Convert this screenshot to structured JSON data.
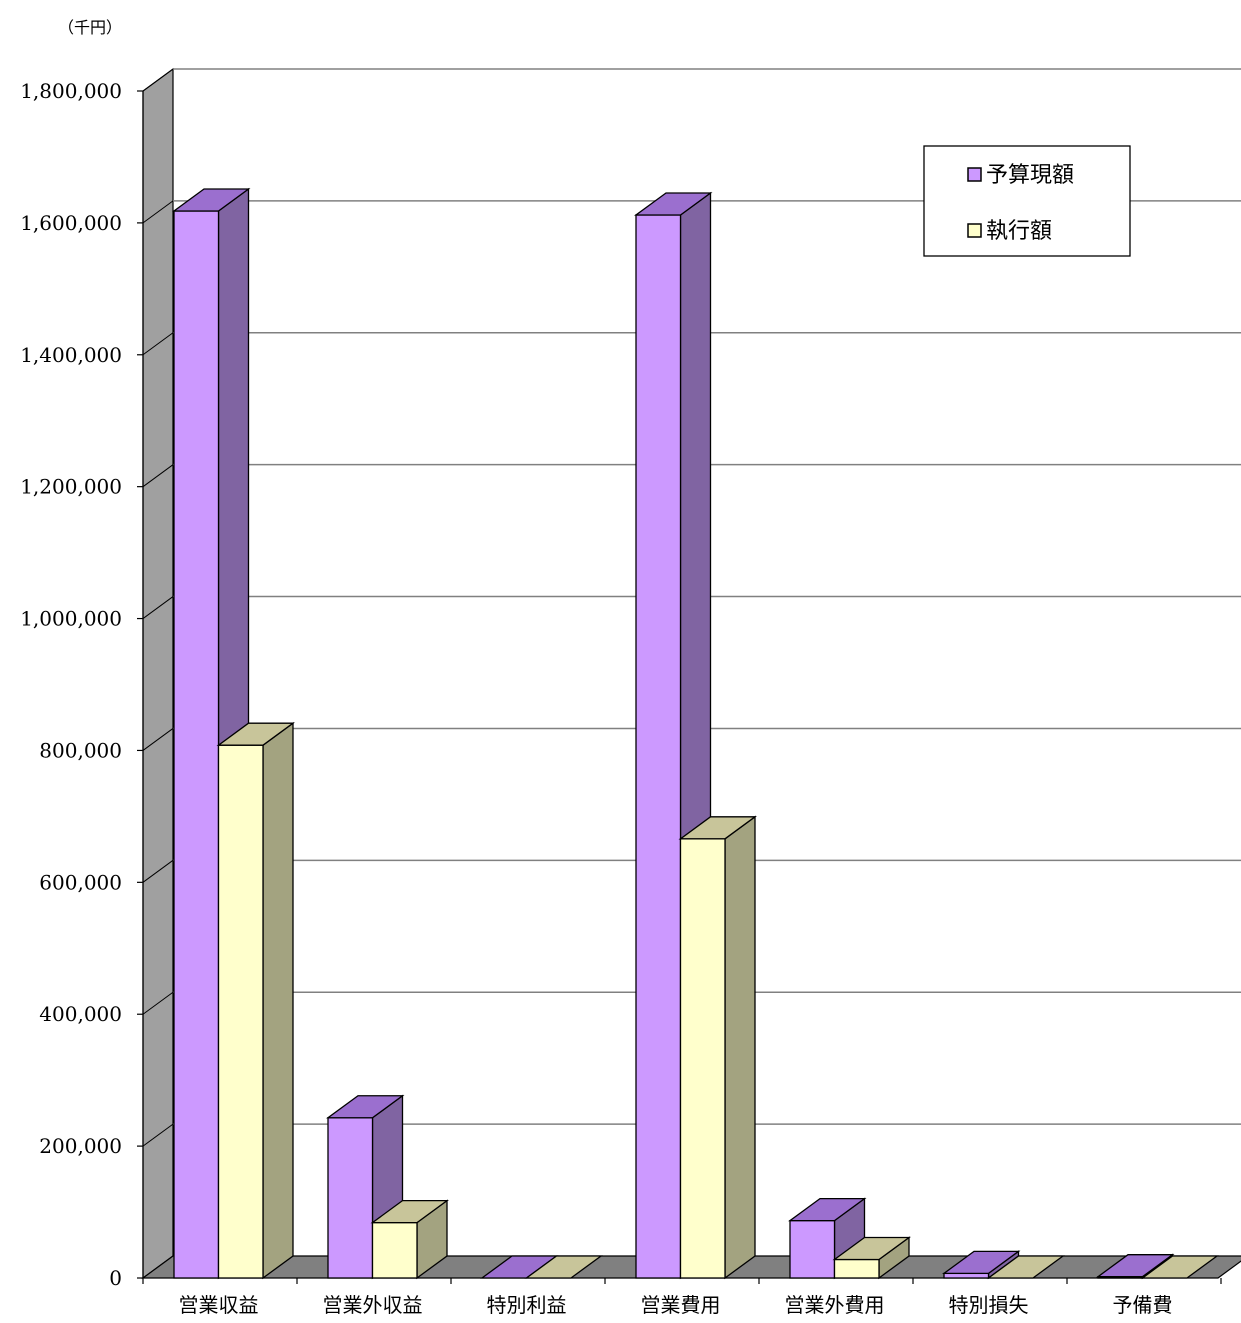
{
  "chart_data": {
    "type": "bar",
    "unit_label": "（千円）",
    "categories": [
      "営業収益",
      "営業外収益",
      "特別利益",
      "営業費用",
      "営業外費用",
      "特別損失",
      "予備費"
    ],
    "series": [
      {
        "name": "予算現額",
        "values": [
          1618000,
          243000,
          0,
          1612000,
          87000,
          7000,
          2000
        ]
      },
      {
        "name": "執行額",
        "values": [
          808000,
          84000,
          0,
          666000,
          28000,
          0,
          0
        ]
      }
    ],
    "y_ticks": [
      "0",
      "200,000",
      "400,000",
      "600,000",
      "800,000",
      "1,000,000",
      "1,200,000",
      "1,400,000",
      "1,600,000",
      "1,800,000"
    ],
    "ylim": [
      0,
      1800000
    ],
    "grid": true,
    "legend_position": "top-right",
    "three_d": true,
    "colors": {
      "series_front": [
        "#CC99FF",
        "#FFFFCC"
      ],
      "series_side": [
        "#8064A2",
        "#A3A380"
      ],
      "series_top": [
        "#9B6FCF",
        "#C8C59A"
      ],
      "wall": "#A0A0A0",
      "floor": "#808080",
      "grid": "#808080"
    }
  }
}
